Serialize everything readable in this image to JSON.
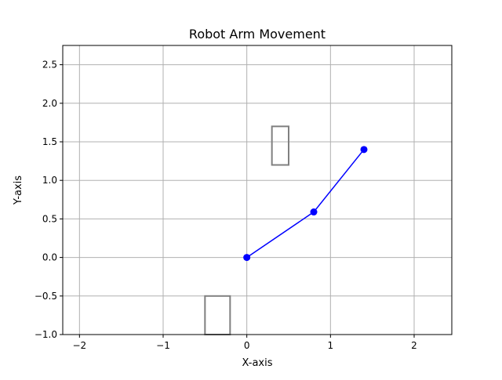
{
  "chart_data": {
    "type": "line",
    "title": "Robot Arm Movement",
    "xlabel": "X-axis",
    "ylabel": "Y-axis",
    "xlim": [
      -2.2,
      2.45
    ],
    "ylim": [
      -1.0,
      2.75
    ],
    "xticks": [
      -2,
      -1,
      0,
      1,
      2
    ],
    "xtick_labels": [
      "−2",
      "−1",
      "0",
      "1",
      "2"
    ],
    "yticks": [
      -1.0,
      -0.5,
      0.0,
      0.5,
      1.0,
      1.5,
      2.0,
      2.5
    ],
    "ytick_labels": [
      "−1.0",
      "−0.5",
      "0.0",
      "0.5",
      "1.0",
      "1.5",
      "2.0",
      "2.5"
    ],
    "grid": true,
    "series": [
      {
        "color": "#0000ff",
        "marker": "circle",
        "x": [
          0.0,
          0.8,
          1.4
        ],
        "y": [
          0.0,
          0.59,
          1.4
        ]
      }
    ],
    "obstacles": [
      {
        "shape": "rectangle",
        "x": [
          0.3,
          0.5
        ],
        "y": [
          1.2,
          1.7
        ],
        "color": "#808080"
      },
      {
        "shape": "rectangle",
        "x": [
          -0.5,
          -0.2
        ],
        "y": [
          -1.0,
          -0.5
        ],
        "color": "#808080"
      }
    ]
  }
}
